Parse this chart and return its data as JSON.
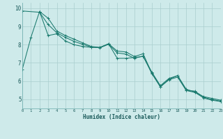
{
  "xlabel": "Humidex (Indice chaleur)",
  "background_color": "#ceeaea",
  "grid_color": "#aacece",
  "line_color": "#1a7a6e",
  "x_min": 0,
  "x_max": 23,
  "y_min": 4.5,
  "y_max": 10.3,
  "yticks": [
    5,
    6,
    7,
    8,
    9,
    10
  ],
  "xticks": [
    0,
    1,
    2,
    3,
    4,
    5,
    6,
    7,
    8,
    9,
    10,
    11,
    12,
    13,
    14,
    15,
    16,
    17,
    18,
    19,
    20,
    21,
    22,
    23
  ],
  "series1_x": [
    0,
    1,
    2,
    3,
    4,
    5,
    6,
    7,
    8,
    9,
    10,
    11,
    12,
    13,
    14,
    15,
    16,
    17,
    18,
    19,
    20,
    21,
    22,
    23
  ],
  "series1_y": [
    6.65,
    8.4,
    9.82,
    8.5,
    8.6,
    8.2,
    8.0,
    7.9,
    7.85,
    7.85,
    8.05,
    7.25,
    7.25,
    7.3,
    7.35,
    6.5,
    5.75,
    6.15,
    6.3,
    5.55,
    5.4,
    5.15,
    5.05,
    4.95
  ],
  "series2_x": [
    2,
    3,
    4,
    5,
    6,
    7,
    8,
    9,
    10,
    11,
    12,
    13,
    14,
    15,
    16,
    17,
    18,
    19,
    20,
    21,
    22,
    23
  ],
  "series2_y": [
    9.82,
    9.45,
    8.75,
    8.5,
    8.3,
    8.1,
    7.9,
    7.85,
    8.05,
    7.65,
    7.6,
    7.35,
    7.5,
    6.45,
    5.7,
    6.1,
    6.3,
    5.5,
    5.45,
    5.12,
    4.98,
    4.9
  ],
  "series3_x": [
    0,
    2,
    3,
    4,
    5,
    6,
    7,
    8,
    9,
    10,
    11,
    12,
    13,
    14,
    15,
    16,
    17,
    18,
    19,
    20,
    21,
    22,
    23
  ],
  "series3_y": [
    9.85,
    9.78,
    9.1,
    8.65,
    8.4,
    8.18,
    8.02,
    7.87,
    7.83,
    8.02,
    7.55,
    7.48,
    7.25,
    7.38,
    6.42,
    5.68,
    6.08,
    6.22,
    5.48,
    5.38,
    5.08,
    4.95,
    4.88
  ]
}
